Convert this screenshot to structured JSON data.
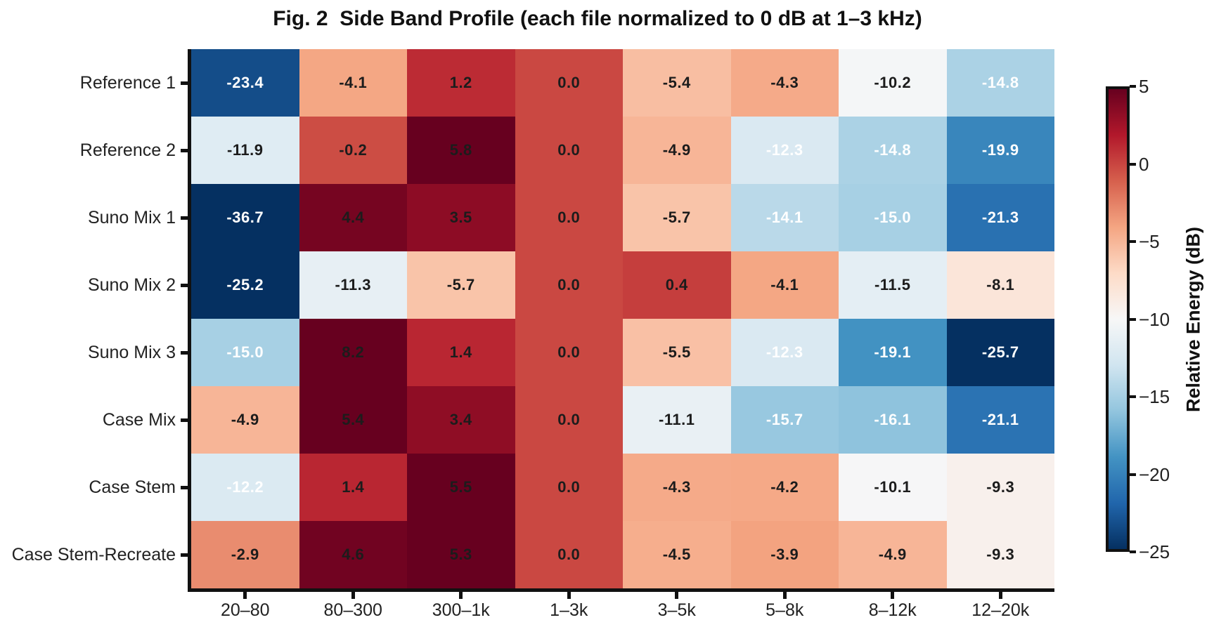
{
  "chart_data": {
    "type": "heatmap",
    "title": "Fig. 2  Side Band Profile (each file normalized to 0 dB at 1–3 kHz)",
    "rows": [
      "Reference 1",
      "Reference 2",
      "Suno Mix 1",
      "Suno Mix 2",
      "Suno Mix 3",
      "Case Mix",
      "Case Stem",
      "Case Stem-Recreate"
    ],
    "columns": [
      "20–80",
      "80–300",
      "300–1k",
      "1–3k",
      "3–5k",
      "5–8k",
      "8–12k",
      "12–20k"
    ],
    "values": [
      [
        -23.4,
        -4.1,
        1.2,
        0.0,
        -5.4,
        -4.3,
        -10.2,
        -14.8
      ],
      [
        -11.9,
        -0.2,
        5.8,
        0.0,
        -4.9,
        -12.3,
        -14.8,
        -19.9
      ],
      [
        -36.7,
        4.4,
        3.5,
        0.0,
        -5.7,
        -14.1,
        -15.0,
        -21.3
      ],
      [
        -25.2,
        -11.3,
        -5.7,
        0.0,
        0.4,
        -4.1,
        -11.5,
        -8.1
      ],
      [
        -15.0,
        8.2,
        1.4,
        0.0,
        -5.5,
        -12.3,
        -19.1,
        -25.7
      ],
      [
        -4.9,
        5.4,
        3.4,
        0.0,
        -11.1,
        -15.7,
        -16.1,
        -21.1
      ],
      [
        -12.2,
        1.4,
        5.5,
        0.0,
        -4.3,
        -4.2,
        -10.1,
        -9.3
      ],
      [
        -2.9,
        4.6,
        5.3,
        0.0,
        -4.5,
        -3.9,
        -4.9,
        -9.3
      ]
    ],
    "value_decimals": 1,
    "colorbar": {
      "label": "Relative Energy (dB)",
      "ticks": [
        5,
        0,
        -5,
        -10,
        -15,
        -20,
        -25
      ],
      "vmin": -25,
      "vmax": 5,
      "position": "right"
    },
    "colormap": {
      "name": "RdBu_r",
      "stops": [
        "#053061",
        "#2166ac",
        "#4393c3",
        "#92c5de",
        "#d1e5f0",
        "#f7f7f7",
        "#fddbc7",
        "#f4a582",
        "#d6604d",
        "#b2182b",
        "#67001f"
      ]
    },
    "cell_text_colors": {
      "light": "#ffffff",
      "dark": "#1c1c1c",
      "white_text_below": -12
    },
    "axis_color": "#111111",
    "grid": false,
    "legend": false
  }
}
